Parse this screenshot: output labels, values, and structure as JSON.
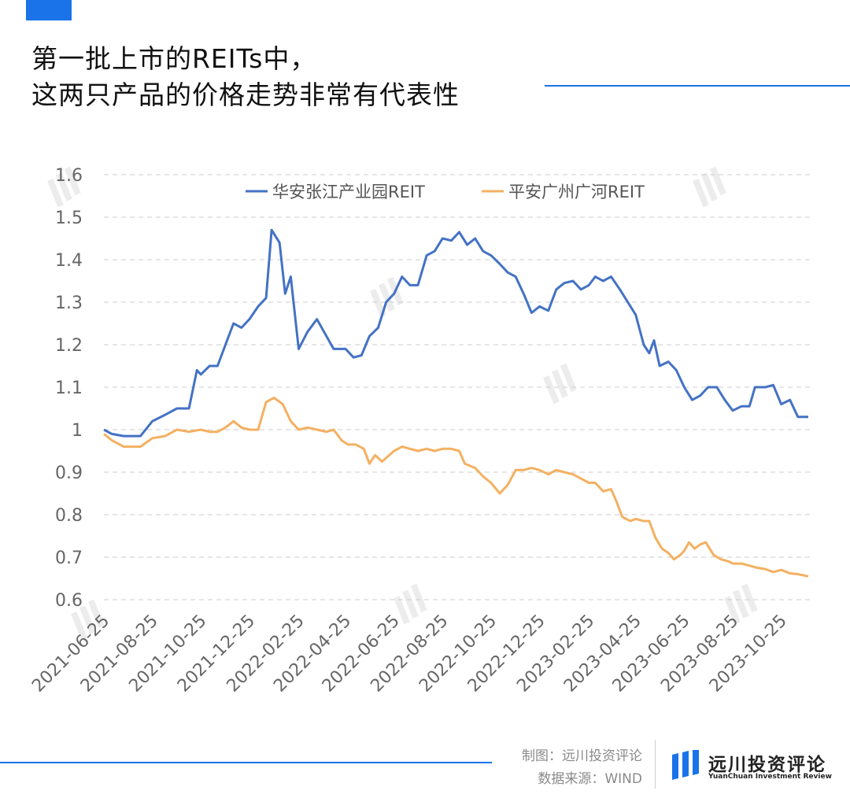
{
  "header": {
    "title_line1": "第一批上市的REITs中，",
    "title_line2": "这两只产品的价格走势非常有代表性"
  },
  "footer": {
    "maker": "制图：远川投资评论",
    "source": "数据来源：WIND",
    "brand_name": "远川投资评论",
    "brand_en": "YuanChuan Investment Review"
  },
  "colors": {
    "accent": "#1a73e8",
    "series1": "#4472c4",
    "series2": "#f4b061",
    "grid": "#cccccc",
    "tick": "#666666"
  },
  "chart_data": {
    "type": "line",
    "title": "",
    "xlabel": "",
    "ylabel": "",
    "ylim": [
      0.6,
      1.6
    ],
    "yticks": [
      0.6,
      0.7,
      0.8,
      0.9,
      1,
      1.1,
      1.2,
      1.3,
      1.4,
      1.5,
      1.6
    ],
    "ytick_labels": [
      "0.6",
      "0.7",
      "0.8",
      "0.9",
      "1",
      "1.1",
      "1.2",
      "1.3",
      "1.4",
      "1.5",
      "1.6"
    ],
    "grid": true,
    "legend_position": "top",
    "x_range": [
      "2021-06-25",
      "2023-12-01"
    ],
    "xtick_labels": [
      "2021-06-25",
      "2021-08-25",
      "2021-10-25",
      "2021-12-25",
      "2022-02-25",
      "2022-04-25",
      "2022-06-25",
      "2022-08-25",
      "2022-10-25",
      "2022-12-25",
      "2023-02-25",
      "2023-04-25",
      "2023-06-25",
      "2023-08-25",
      "2023-10-25"
    ],
    "series": [
      {
        "name": "华安张江产业园REIT",
        "color": "#4472c4",
        "points": [
          [
            "2021-06-25",
            1.0
          ],
          [
            "2021-07-05",
            0.99
          ],
          [
            "2021-07-20",
            0.985
          ],
          [
            "2021-08-10",
            0.985
          ],
          [
            "2021-08-25",
            1.02
          ],
          [
            "2021-09-10",
            1.035
          ],
          [
            "2021-09-25",
            1.05
          ],
          [
            "2021-10-10",
            1.05
          ],
          [
            "2021-10-20",
            1.14
          ],
          [
            "2021-10-25",
            1.13
          ],
          [
            "2021-11-05",
            1.15
          ],
          [
            "2021-11-15",
            1.15
          ],
          [
            "2021-11-25",
            1.2
          ],
          [
            "2021-12-05",
            1.25
          ],
          [
            "2021-12-15",
            1.24
          ],
          [
            "2021-12-25",
            1.26
          ],
          [
            "2022-01-05",
            1.29
          ],
          [
            "2022-01-15",
            1.31
          ],
          [
            "2022-01-22",
            1.47
          ],
          [
            "2022-02-01",
            1.44
          ],
          [
            "2022-02-08",
            1.32
          ],
          [
            "2022-02-15",
            1.36
          ],
          [
            "2022-02-25",
            1.19
          ],
          [
            "2022-03-08",
            1.23
          ],
          [
            "2022-03-20",
            1.26
          ],
          [
            "2022-04-01",
            1.22
          ],
          [
            "2022-04-10",
            1.19
          ],
          [
            "2022-04-25",
            1.19
          ],
          [
            "2022-05-05",
            1.17
          ],
          [
            "2022-05-15",
            1.175
          ],
          [
            "2022-05-25",
            1.22
          ],
          [
            "2022-06-05",
            1.24
          ],
          [
            "2022-06-15",
            1.3
          ],
          [
            "2022-06-25",
            1.32
          ],
          [
            "2022-07-05",
            1.36
          ],
          [
            "2022-07-15",
            1.34
          ],
          [
            "2022-07-25",
            1.34
          ],
          [
            "2022-08-05",
            1.41
          ],
          [
            "2022-08-15",
            1.42
          ],
          [
            "2022-08-25",
            1.45
          ],
          [
            "2022-09-05",
            1.445
          ],
          [
            "2022-09-15",
            1.465
          ],
          [
            "2022-09-25",
            1.435
          ],
          [
            "2022-10-05",
            1.45
          ],
          [
            "2022-10-15",
            1.42
          ],
          [
            "2022-10-25",
            1.41
          ],
          [
            "2022-11-05",
            1.39
          ],
          [
            "2022-11-15",
            1.37
          ],
          [
            "2022-11-25",
            1.36
          ],
          [
            "2022-12-05",
            1.32
          ],
          [
            "2022-12-15",
            1.275
          ],
          [
            "2022-12-25",
            1.29
          ],
          [
            "2023-01-05",
            1.28
          ],
          [
            "2023-01-15",
            1.33
          ],
          [
            "2023-01-25",
            1.345
          ],
          [
            "2023-02-05",
            1.35
          ],
          [
            "2023-02-15",
            1.33
          ],
          [
            "2023-02-25",
            1.34
          ],
          [
            "2023-03-05",
            1.36
          ],
          [
            "2023-03-15",
            1.35
          ],
          [
            "2023-03-25",
            1.36
          ],
          [
            "2023-04-05",
            1.33
          ],
          [
            "2023-04-15",
            1.3
          ],
          [
            "2023-04-25",
            1.27
          ],
          [
            "2023-05-05",
            1.2
          ],
          [
            "2023-05-12",
            1.18
          ],
          [
            "2023-05-18",
            1.21
          ],
          [
            "2023-05-25",
            1.15
          ],
          [
            "2023-06-05",
            1.16
          ],
          [
            "2023-06-15",
            1.14
          ],
          [
            "2023-06-25",
            1.1
          ],
          [
            "2023-07-05",
            1.07
          ],
          [
            "2023-07-15",
            1.08
          ],
          [
            "2023-07-25",
            1.1
          ],
          [
            "2023-08-05",
            1.1
          ],
          [
            "2023-08-15",
            1.07
          ],
          [
            "2023-08-25",
            1.045
          ],
          [
            "2023-09-05",
            1.055
          ],
          [
            "2023-09-15",
            1.055
          ],
          [
            "2023-09-22",
            1.1
          ],
          [
            "2023-10-05",
            1.1
          ],
          [
            "2023-10-15",
            1.105
          ],
          [
            "2023-10-25",
            1.06
          ],
          [
            "2023-11-05",
            1.07
          ],
          [
            "2023-11-15",
            1.03
          ],
          [
            "2023-11-28",
            1.03
          ]
        ]
      },
      {
        "name": "平安广州广河REIT",
        "color": "#f4b061",
        "points": [
          [
            "2021-06-25",
            0.99
          ],
          [
            "2021-07-05",
            0.975
          ],
          [
            "2021-07-20",
            0.96
          ],
          [
            "2021-08-10",
            0.96
          ],
          [
            "2021-08-25",
            0.98
          ],
          [
            "2021-09-10",
            0.985
          ],
          [
            "2021-09-25",
            1.0
          ],
          [
            "2021-10-10",
            0.995
          ],
          [
            "2021-10-25",
            1.0
          ],
          [
            "2021-11-05",
            0.995
          ],
          [
            "2021-11-15",
            0.995
          ],
          [
            "2021-11-25",
            1.005
          ],
          [
            "2021-12-05",
            1.02
          ],
          [
            "2021-12-15",
            1.005
          ],
          [
            "2021-12-25",
            1.0
          ],
          [
            "2022-01-05",
            1.0
          ],
          [
            "2022-01-15",
            1.065
          ],
          [
            "2022-01-25",
            1.075
          ],
          [
            "2022-02-05",
            1.06
          ],
          [
            "2022-02-15",
            1.02
          ],
          [
            "2022-02-25",
            1.0
          ],
          [
            "2022-03-08",
            1.005
          ],
          [
            "2022-03-20",
            1.0
          ],
          [
            "2022-04-01",
            0.995
          ],
          [
            "2022-04-10",
            1.0
          ],
          [
            "2022-04-20",
            0.975
          ],
          [
            "2022-04-28",
            0.965
          ],
          [
            "2022-05-08",
            0.965
          ],
          [
            "2022-05-18",
            0.955
          ],
          [
            "2022-05-25",
            0.92
          ],
          [
            "2022-06-01",
            0.94
          ],
          [
            "2022-06-10",
            0.925
          ],
          [
            "2022-06-25",
            0.95
          ],
          [
            "2022-07-05",
            0.96
          ],
          [
            "2022-07-15",
            0.955
          ],
          [
            "2022-07-25",
            0.95
          ],
          [
            "2022-08-05",
            0.955
          ],
          [
            "2022-08-15",
            0.95
          ],
          [
            "2022-08-25",
            0.955
          ],
          [
            "2022-09-05",
            0.955
          ],
          [
            "2022-09-15",
            0.95
          ],
          [
            "2022-09-22",
            0.92
          ],
          [
            "2022-10-05",
            0.91
          ],
          [
            "2022-10-15",
            0.89
          ],
          [
            "2022-10-25",
            0.875
          ],
          [
            "2022-11-05",
            0.85
          ],
          [
            "2022-11-15",
            0.87
          ],
          [
            "2022-11-25",
            0.905
          ],
          [
            "2022-12-05",
            0.905
          ],
          [
            "2022-12-15",
            0.91
          ],
          [
            "2022-12-25",
            0.905
          ],
          [
            "2023-01-05",
            0.895
          ],
          [
            "2023-01-15",
            0.905
          ],
          [
            "2023-01-25",
            0.9
          ],
          [
            "2023-02-05",
            0.895
          ],
          [
            "2023-02-15",
            0.885
          ],
          [
            "2023-02-25",
            0.875
          ],
          [
            "2023-03-05",
            0.875
          ],
          [
            "2023-03-15",
            0.855
          ],
          [
            "2023-03-25",
            0.86
          ],
          [
            "2023-04-01",
            0.83
          ],
          [
            "2023-04-08",
            0.795
          ],
          [
            "2023-04-18",
            0.785
          ],
          [
            "2023-04-25",
            0.79
          ],
          [
            "2023-05-05",
            0.785
          ],
          [
            "2023-05-12",
            0.785
          ],
          [
            "2023-05-20",
            0.745
          ],
          [
            "2023-05-28",
            0.72
          ],
          [
            "2023-06-05",
            0.71
          ],
          [
            "2023-06-12",
            0.695
          ],
          [
            "2023-06-20",
            0.705
          ],
          [
            "2023-06-25",
            0.715
          ],
          [
            "2023-07-01",
            0.735
          ],
          [
            "2023-07-08",
            0.72
          ],
          [
            "2023-07-15",
            0.73
          ],
          [
            "2023-07-22",
            0.735
          ],
          [
            "2023-08-01",
            0.705
          ],
          [
            "2023-08-10",
            0.695
          ],
          [
            "2023-08-20",
            0.69
          ],
          [
            "2023-08-25",
            0.685
          ],
          [
            "2023-09-05",
            0.685
          ],
          [
            "2023-09-15",
            0.68
          ],
          [
            "2023-09-25",
            0.675
          ],
          [
            "2023-10-05",
            0.672
          ],
          [
            "2023-10-15",
            0.665
          ],
          [
            "2023-10-25",
            0.67
          ],
          [
            "2023-11-05",
            0.662
          ],
          [
            "2023-11-15",
            0.66
          ],
          [
            "2023-11-28",
            0.655
          ]
        ]
      }
    ]
  }
}
